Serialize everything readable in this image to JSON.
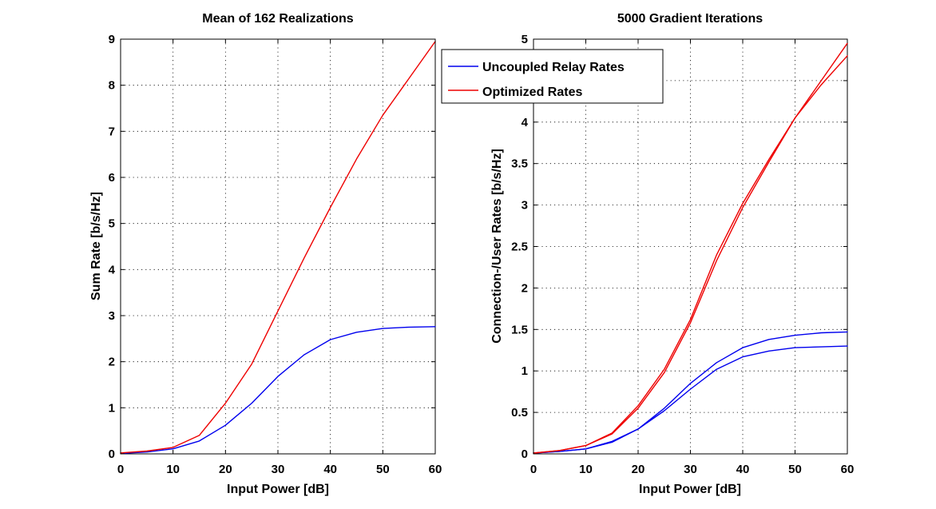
{
  "chart_data": [
    {
      "type": "line",
      "title": "Mean of 162 Realizations",
      "xlabel": "Input Power [dB]",
      "ylabel": "Sum Rate [b/s/Hz]",
      "xlim": [
        0,
        60
      ],
      "ylim": [
        0,
        9
      ],
      "xticks": [
        0,
        10,
        20,
        30,
        40,
        50,
        60
      ],
      "yticks": [
        0,
        1,
        2,
        3,
        4,
        5,
        6,
        7,
        8,
        9
      ],
      "grid": true,
      "series": [
        {
          "name": "Uncoupled Relay Rates",
          "color": "#0000ee",
          "x": [
            0,
            5,
            10,
            15,
            20,
            25,
            30,
            35,
            40,
            45,
            50,
            55,
            60
          ],
          "y": [
            0.01,
            0.04,
            0.11,
            0.28,
            0.62,
            1.1,
            1.68,
            2.15,
            2.48,
            2.64,
            2.72,
            2.75,
            2.76
          ]
        },
        {
          "name": "Optimized Rates",
          "color": "#ee0000",
          "x": [
            0,
            5,
            10,
            15,
            20,
            25,
            30,
            35,
            40,
            45,
            50,
            55,
            60
          ],
          "y": [
            0.02,
            0.06,
            0.14,
            0.4,
            1.1,
            1.95,
            3.1,
            4.25,
            5.35,
            6.4,
            7.35,
            8.15,
            8.95
          ]
        }
      ]
    },
    {
      "type": "line",
      "title": "5000 Gradient Iterations",
      "xlabel": "Input Power [dB]",
      "ylabel": "Connection-/User Rates [b/s/Hz]",
      "xlim": [
        0,
        60
      ],
      "ylim": [
        0,
        5
      ],
      "xticks": [
        0,
        10,
        20,
        30,
        40,
        50,
        60
      ],
      "yticks": [
        0,
        0.5,
        1,
        1.5,
        2,
        2.5,
        3,
        3.5,
        4,
        4.5,
        5
      ],
      "grid": true,
      "legend": {
        "placement": "top-right",
        "entries": [
          "Uncoupled Relay Rates",
          "Optimized Rates"
        ]
      },
      "series": [
        {
          "name": "Uncoupled Relay Rates",
          "color": "#0000ee",
          "x": [
            0,
            5,
            10,
            15,
            20,
            25,
            30,
            35,
            40,
            45,
            50,
            55,
            60
          ],
          "y": [
            0.01,
            0.03,
            0.06,
            0.15,
            0.3,
            0.55,
            0.85,
            1.1,
            1.28,
            1.38,
            1.43,
            1.46,
            1.47
          ]
        },
        {
          "color": "#0000ee",
          "x": [
            0,
            5,
            10,
            15,
            20,
            25,
            30,
            35,
            40,
            45,
            50,
            55,
            60
          ],
          "y": [
            0.01,
            0.03,
            0.06,
            0.14,
            0.3,
            0.52,
            0.78,
            1.02,
            1.17,
            1.24,
            1.28,
            1.29,
            1.3
          ]
        },
        {
          "name": "Optimized Rates",
          "color": "#ee0000",
          "x": [
            0,
            5,
            10,
            15,
            20,
            25,
            30,
            35,
            40,
            45,
            50,
            55,
            60
          ],
          "y": [
            0.01,
            0.04,
            0.1,
            0.25,
            0.58,
            1.02,
            1.62,
            2.4,
            3.02,
            3.55,
            4.05,
            4.5,
            4.95
          ]
        },
        {
          "color": "#ee0000",
          "x": [
            0,
            5,
            10,
            15,
            20,
            25,
            30,
            35,
            40,
            45,
            50,
            55,
            60
          ],
          "y": [
            0.01,
            0.04,
            0.1,
            0.24,
            0.55,
            0.98,
            1.58,
            2.33,
            2.97,
            3.52,
            4.05,
            4.45,
            4.8
          ]
        }
      ]
    }
  ]
}
